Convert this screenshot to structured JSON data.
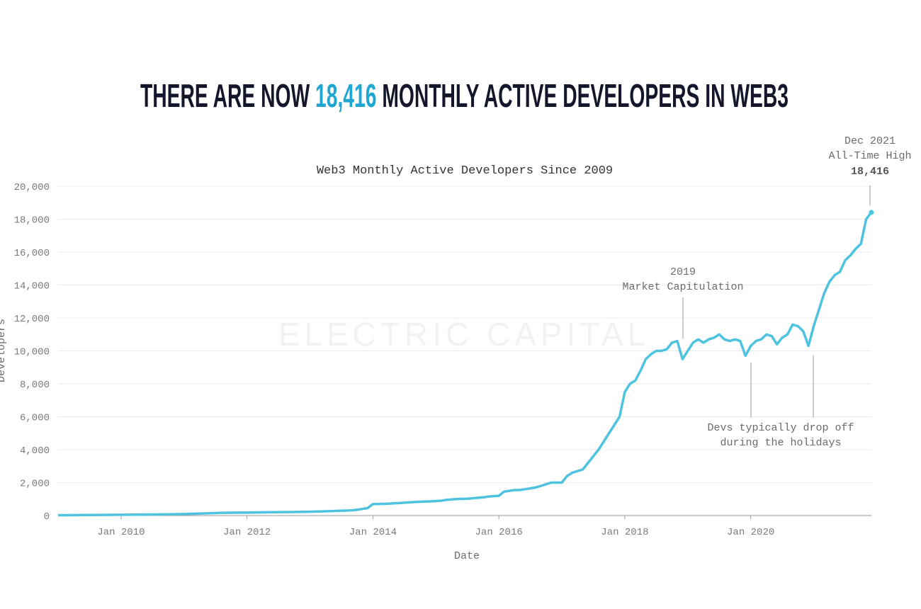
{
  "headline": {
    "prefix": "THERE ARE NOW",
    "highlight": "18,416",
    "suffix": "MONTHLY ACTIVE DEVELOPERS IN WEB3"
  },
  "watermark": "ELECTRIC CAPITAL",
  "chart_data": {
    "type": "line",
    "title": "Web3 Monthly Active Developers Since 2009",
    "x_label": "Date",
    "y_label": "Developers",
    "x": [
      "2009-01",
      "2009-02",
      "2009-03",
      "2009-04",
      "2009-05",
      "2009-06",
      "2009-07",
      "2009-08",
      "2009-09",
      "2009-10",
      "2009-11",
      "2009-12",
      "2010-01",
      "2010-02",
      "2010-03",
      "2010-04",
      "2010-05",
      "2010-06",
      "2010-07",
      "2010-08",
      "2010-09",
      "2010-10",
      "2010-11",
      "2010-12",
      "2011-01",
      "2011-02",
      "2011-03",
      "2011-04",
      "2011-05",
      "2011-06",
      "2011-07",
      "2011-08",
      "2011-09",
      "2011-10",
      "2011-11",
      "2011-12",
      "2012-01",
      "2012-02",
      "2012-03",
      "2012-04",
      "2012-05",
      "2012-06",
      "2012-07",
      "2012-08",
      "2012-09",
      "2012-10",
      "2012-11",
      "2012-12",
      "2013-01",
      "2013-02",
      "2013-03",
      "2013-04",
      "2013-05",
      "2013-06",
      "2013-07",
      "2013-08",
      "2013-09",
      "2013-10",
      "2013-11",
      "2013-12",
      "2014-01",
      "2014-02",
      "2014-03",
      "2014-04",
      "2014-05",
      "2014-06",
      "2014-07",
      "2014-08",
      "2014-09",
      "2014-10",
      "2014-11",
      "2014-12",
      "2015-01",
      "2015-02",
      "2015-03",
      "2015-04",
      "2015-05",
      "2015-06",
      "2015-07",
      "2015-08",
      "2015-09",
      "2015-10",
      "2015-11",
      "2015-12",
      "2016-01",
      "2016-02",
      "2016-03",
      "2016-04",
      "2016-05",
      "2016-06",
      "2016-07",
      "2016-08",
      "2016-09",
      "2016-10",
      "2016-11",
      "2016-12",
      "2017-01",
      "2017-02",
      "2017-03",
      "2017-04",
      "2017-05",
      "2017-06",
      "2017-07",
      "2017-08",
      "2017-09",
      "2017-10",
      "2017-11",
      "2017-12",
      "2018-01",
      "2018-02",
      "2018-03",
      "2018-04",
      "2018-05",
      "2018-06",
      "2018-07",
      "2018-08",
      "2018-09",
      "2018-10",
      "2018-11",
      "2018-12",
      "2019-01",
      "2019-02",
      "2019-03",
      "2019-04",
      "2019-05",
      "2019-06",
      "2019-07",
      "2019-08",
      "2019-09",
      "2019-10",
      "2019-11",
      "2019-12",
      "2020-01",
      "2020-02",
      "2020-03",
      "2020-04",
      "2020-05",
      "2020-06",
      "2020-07",
      "2020-08",
      "2020-09",
      "2020-10",
      "2020-11",
      "2020-12",
      "2021-01",
      "2021-02",
      "2021-03",
      "2021-04",
      "2021-05",
      "2021-06",
      "2021-07",
      "2021-08",
      "2021-09",
      "2021-10",
      "2021-11",
      "2021-12"
    ],
    "series": [
      {
        "name": "Monthly Active Developers",
        "color": "#4ec3e0",
        "values": [
          20,
          22,
          24,
          26,
          28,
          30,
          32,
          35,
          38,
          40,
          42,
          45,
          48,
          50,
          52,
          55,
          58,
          60,
          62,
          65,
          70,
          75,
          80,
          85,
          90,
          100,
          110,
          120,
          130,
          140,
          150,
          160,
          165,
          170,
          175,
          180,
          180,
          185,
          190,
          195,
          200,
          200,
          205,
          210,
          210,
          215,
          220,
          225,
          230,
          240,
          250,
          260,
          270,
          280,
          290,
          300,
          320,
          350,
          400,
          450,
          700,
          700,
          710,
          720,
          740,
          760,
          780,
          800,
          820,
          840,
          850,
          860,
          880,
          900,
          950,
          980,
          1000,
          1010,
          1020,
          1050,
          1080,
          1100,
          1150,
          1180,
          1200,
          1450,
          1500,
          1550,
          1550,
          1600,
          1650,
          1700,
          1800,
          1900,
          2000,
          2000,
          2000,
          2400,
          2600,
          2700,
          2800,
          3200,
          3600,
          4000,
          4500,
          5000,
          5500,
          6000,
          7500,
          8000,
          8200,
          8800,
          9500,
          9800,
          10000,
          10000,
          10100,
          10500,
          10600,
          9500,
          10000,
          10500,
          10700,
          10500,
          10700,
          10800,
          11000,
          10700,
          10600,
          10700,
          10600,
          9700,
          10300,
          10600,
          10700,
          11000,
          10900,
          10400,
          10800,
          11000,
          11600,
          11500,
          11200,
          10300,
          11500,
          12500,
          13500,
          14200,
          14600,
          14800,
          15500,
          15800,
          16200,
          16500,
          18000,
          18416
        ]
      }
    ],
    "xlim": [
      "2009-01",
      "2021-12"
    ],
    "xticks": [
      {
        "value": "2010-01",
        "label": "Jan 2010"
      },
      {
        "value": "2012-01",
        "label": "Jan 2012"
      },
      {
        "value": "2014-01",
        "label": "Jan 2014"
      },
      {
        "value": "2016-01",
        "label": "Jan 2016"
      },
      {
        "value": "2018-01",
        "label": "Jan 2018"
      },
      {
        "value": "2020-01",
        "label": "Jan 2020"
      }
    ],
    "ylim": [
      0,
      20000
    ],
    "yticks": [
      0,
      {
        "value": 2000,
        "label": "2,000"
      },
      {
        "value": 4000,
        "label": "4,000"
      },
      {
        "value": 6000,
        "label": "6,000"
      },
      {
        "value": 8000,
        "label": "8,000"
      },
      {
        "value": 10000,
        "label": "10,000"
      },
      {
        "value": 12000,
        "label": "12,000"
      },
      {
        "value": 14000,
        "label": "14,000"
      },
      {
        "value": 16000,
        "label": "16,000"
      },
      {
        "value": 18000,
        "label": "18,000"
      },
      {
        "value": 20000,
        "label": "20,000"
      }
    ],
    "grid": true,
    "annotations": [
      {
        "lines": [
          "2019",
          "Market Capitulation"
        ]
      },
      {
        "lines": [
          "Devs typically drop off",
          "during the holidays"
        ]
      },
      {
        "lines": [
          "Dec 2021",
          "All-Time High",
          "18,416"
        ]
      }
    ]
  }
}
